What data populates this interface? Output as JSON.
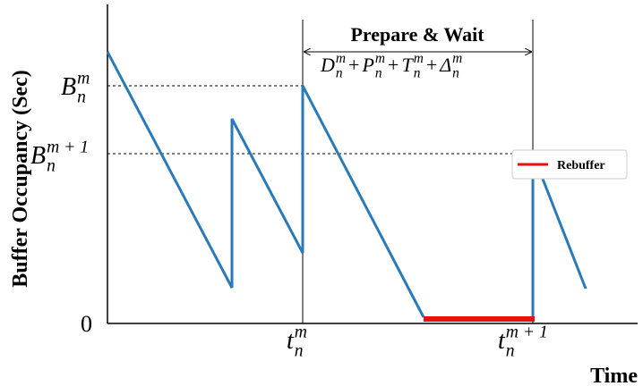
{
  "y_axis_label": "Buffer Occupancy (Sec)",
  "x_axis_label": "Time",
  "origin_label": "0",
  "interval_title": "Prepare & Wait",
  "interval_formula": {
    "operator": "+",
    "terms": [
      {
        "base": "D",
        "sub": "n",
        "sup": "m"
      },
      {
        "base": "P",
        "sub": "n",
        "sup": "m"
      },
      {
        "base": "T",
        "sub": "n",
        "sup": "m"
      },
      {
        "base": "Δ",
        "sub": "n",
        "sup": "m"
      }
    ]
  },
  "y_labels": [
    {
      "base": "B",
      "sub": "n",
      "sup": "m"
    },
    {
      "base": "B",
      "sub": "n",
      "sup": "m + 1"
    }
  ],
  "x_labels": [
    {
      "base": "t",
      "sub": "n",
      "sup": "m"
    },
    {
      "base": "t",
      "sub": "n",
      "sup": "m + 1"
    }
  ],
  "legend": {
    "label": "Rebuffer"
  }
}
